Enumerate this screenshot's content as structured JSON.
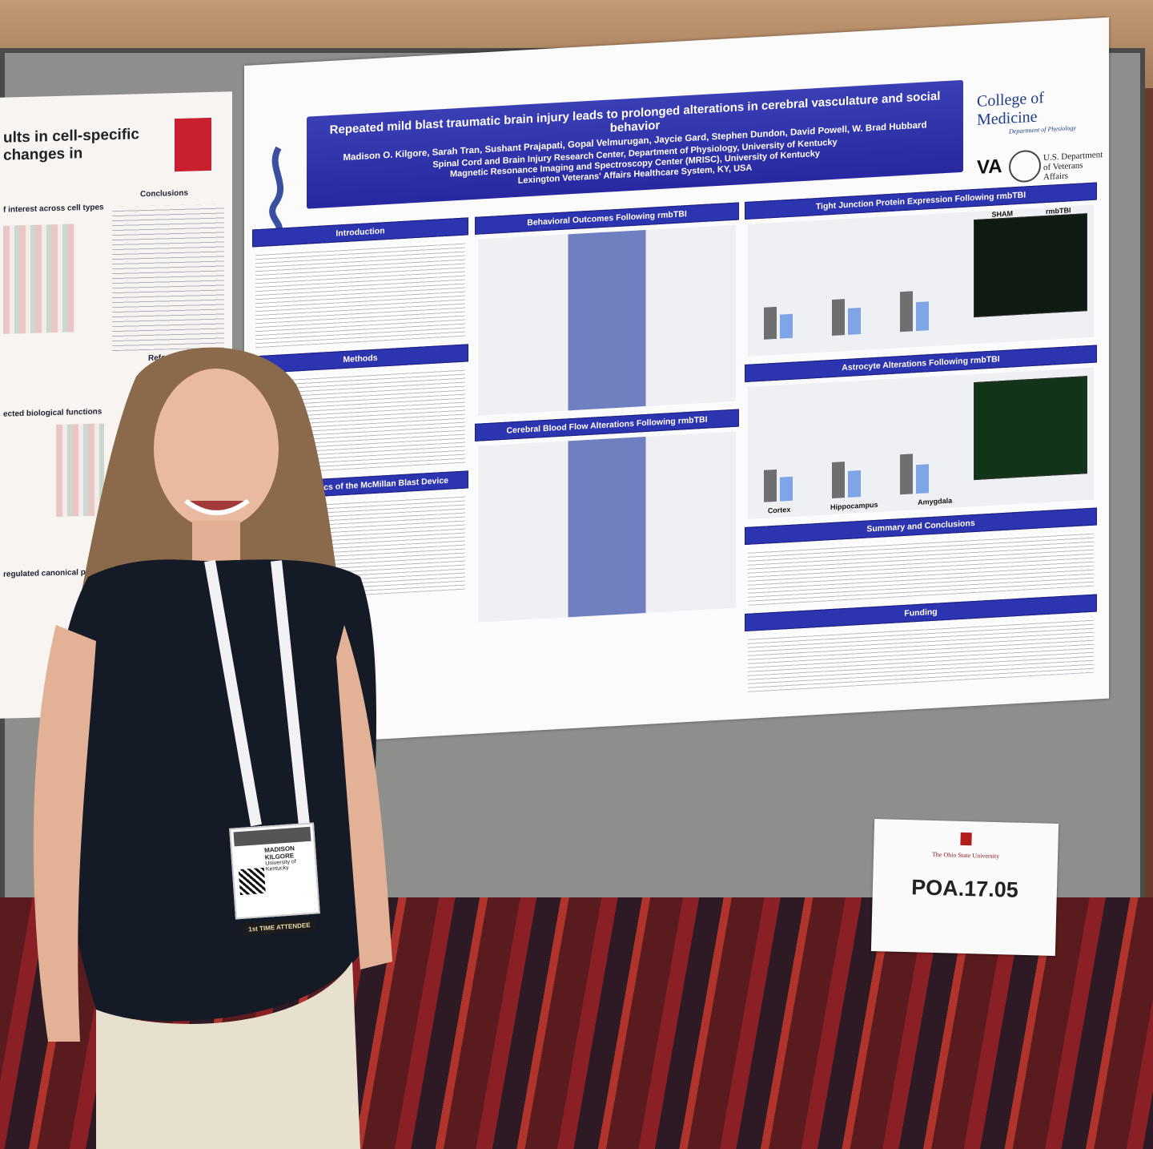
{
  "poster": {
    "title": "Repeated mild blast traumatic brain injury leads to prolonged alterations in cerebral vasculature and social behavior",
    "authors": "Madison O. Kilgore, Sarah Tran, Sushant Prajapati, Gopal Velmurugan, Jaycie Gard, Stephen Dundon, David Powell, W. Brad Hubbard",
    "affiliations": [
      "Spinal Cord and Brain Injury Research Center, Department of Physiology, University of Kentucky",
      "Magnetic Resonance Imaging and Spectroscopy Center (MRISC), University of Kentucky",
      "Lexington Veterans' Affairs Healthcare System, KY, USA"
    ],
    "logos": {
      "college": "College of Medicine",
      "department": "Department of Physiology",
      "va": "VA",
      "va_department": "U.S. Department of Veterans Affairs"
    },
    "columns": [
      [
        "Introduction",
        "Methods",
        "Characteristics of the McMillan Blast Device"
      ],
      [
        "Behavioral Outcomes Following rmbTBI",
        "Cerebral Blood Flow Alterations Following rmbTBI"
      ],
      [
        "Tight Junction Protein Expression Following rmbTBI",
        "Astrocyte Alterations Following rmbTBI",
        "Summary and Conclusions",
        "Funding"
      ]
    ],
    "region_labels": [
      "Cortex",
      "Hippocampus",
      "Amygdala"
    ],
    "group_labels": [
      "SHAM",
      "rmbTBI"
    ]
  },
  "left_poster": {
    "title": "ults in cell-specific changes in",
    "headings": [
      "Conclusions",
      "References",
      "f interest across cell types",
      "ected biological functions",
      "regulated canonical pathways"
    ]
  },
  "placard": {
    "institution": "The Ohio State University",
    "code": "POA.17.05"
  },
  "badge": {
    "name": [
      "MADISON",
      "KILGORE"
    ],
    "affiliation": "University of Kentucky",
    "ribbon": "1st TIME ATTENDEE"
  }
}
